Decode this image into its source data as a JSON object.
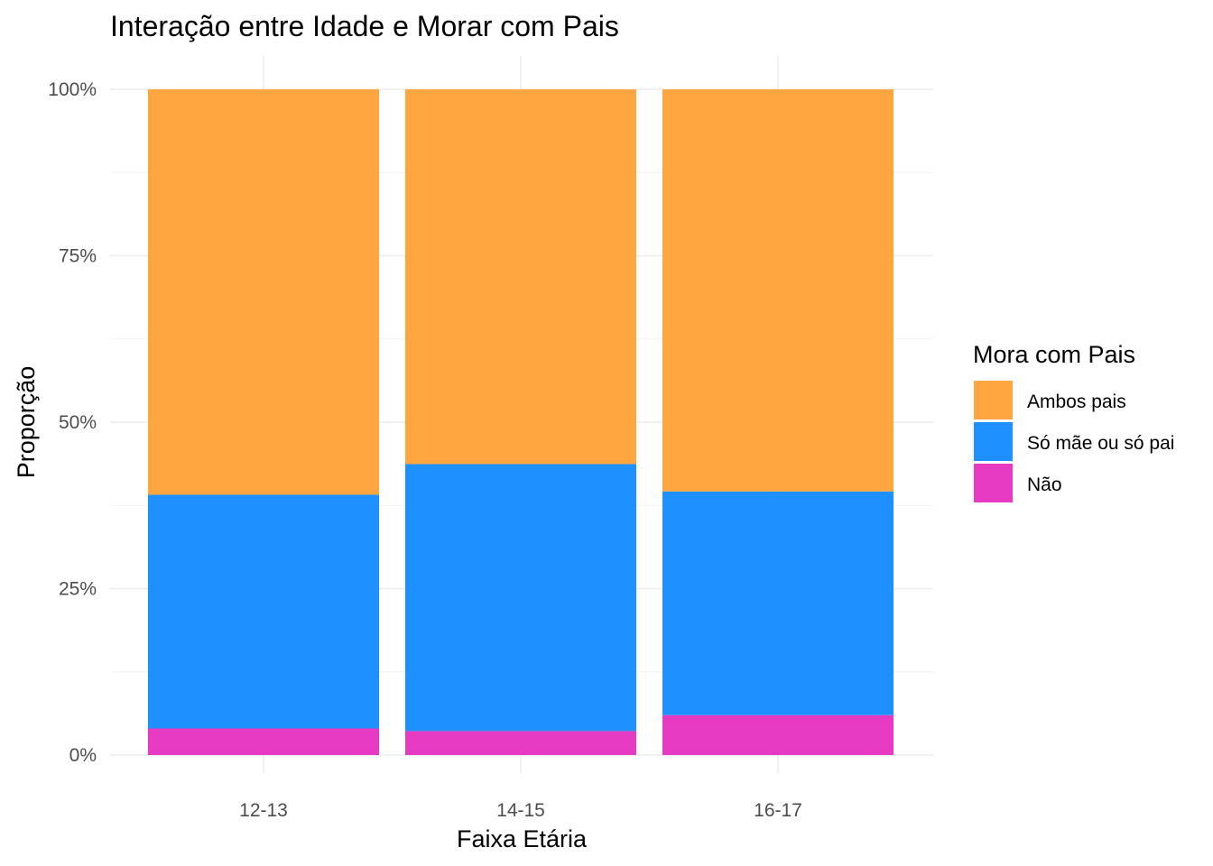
{
  "chart_data": {
    "type": "bar",
    "stacked": true,
    "title": "Interação entre Idade e Morar com Pais",
    "xlabel": "Faixa Etária",
    "ylabel": "Proporção",
    "categories": [
      "12-13",
      "14-15",
      "16-17"
    ],
    "ylim": [
      0,
      1
    ],
    "yticks": [
      0,
      0.25,
      0.5,
      0.75,
      1
    ],
    "ytick_labels": [
      "0%",
      "25%",
      "50%",
      "75%",
      "100%"
    ],
    "grid": true,
    "legend": {
      "title": "Mora com Pais",
      "position": "right"
    },
    "series": [
      {
        "name": "Ambos pais",
        "color": "#FFA640",
        "values": [
          0.609,
          0.563,
          0.604
        ]
      },
      {
        "name": "Só mãe ou só pai",
        "color": "#1E90FF",
        "values": [
          0.351,
          0.401,
          0.336
        ]
      },
      {
        "name": "Não",
        "color": "#E63AC2",
        "values": [
          0.04,
          0.036,
          0.06
        ]
      }
    ]
  }
}
